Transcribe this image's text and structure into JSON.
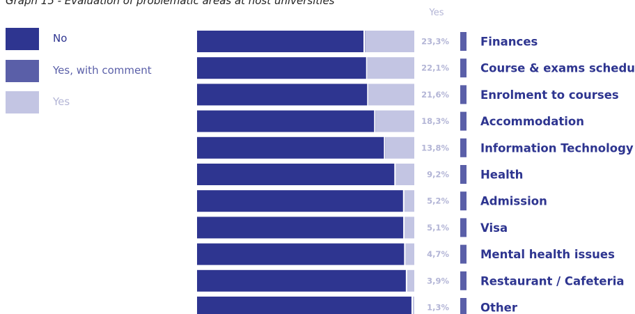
{
  "chart_data": {
    "type": "bar",
    "title": "Graph 15 - Evaluation of problematic areas at host universities",
    "column_header": "Yes",
    "categories": [
      "Finances",
      "Course & exams schedule",
      "Enrolment to courses",
      "Accommodation",
      "Information Technology",
      "Health",
      "Admission",
      "Visa",
      "Mental health issues",
      "Restaurant / Cafeteria",
      "Other"
    ],
    "series": [
      {
        "name": "No",
        "values": [
          76.6,
          77.8,
          78.3,
          81.5,
          86.0,
          90.8,
          94.8,
          94.9,
          95.3,
          96.1,
          98.7
        ]
      },
      {
        "name": "Yes, with comment",
        "values": [
          0.1,
          0.1,
          0.1,
          0.2,
          0.2,
          0,
          0,
          0,
          0,
          0,
          0
        ]
      },
      {
        "name": "Yes",
        "values": [
          23.3,
          22.1,
          21.6,
          18.3,
          13.8,
          9.2,
          5.2,
          5.1,
          4.7,
          3.9,
          1.3
        ]
      }
    ],
    "value_labels": [
      "23,3%",
      "22,1%",
      "21,6%",
      "18,3%",
      "13,8%",
      "9,2%",
      "5,2%",
      "5,1%",
      "4,7%",
      "3,9%",
      "1,3%"
    ],
    "stacked": true,
    "orientation": "horizontal",
    "xlim": [
      0,
      100
    ],
    "legend_position": "left",
    "grid": false,
    "colors": {
      "No": "#2e3590",
      "Yes, with comment": "#5a5fa8",
      "Yes": "#c3c5e3",
      "label_text": "#2e3590",
      "value_text": "#b3b5d6"
    }
  }
}
